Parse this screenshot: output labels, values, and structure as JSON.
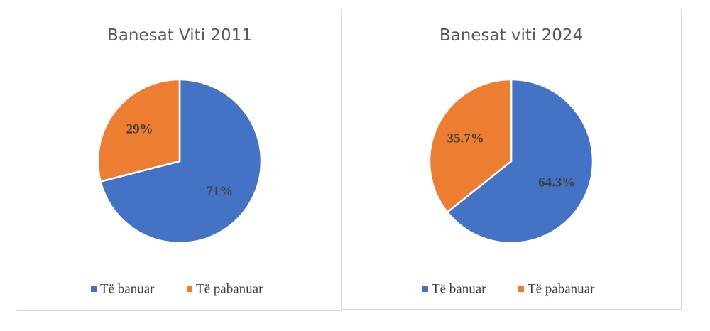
{
  "chart_data": [
    {
      "type": "pie",
      "title": "Banesat Viti 2011",
      "categories": [
        "Të banuar",
        "Të pabanuar"
      ],
      "values": [
        71,
        29
      ],
      "value_labels": [
        "71%",
        "29%"
      ],
      "colors": [
        "#4472c4",
        "#ed7d31"
      ],
      "legend": "bottom"
    },
    {
      "type": "pie",
      "title": "Banesat viti 2024",
      "categories": [
        "Të banuar",
        "Të pabanuar"
      ],
      "values": [
        64.3,
        35.7
      ],
      "value_labels": [
        "64.3%",
        "35.7%"
      ],
      "colors": [
        "#4472c4",
        "#ed7d31"
      ],
      "legend": "bottom"
    }
  ]
}
